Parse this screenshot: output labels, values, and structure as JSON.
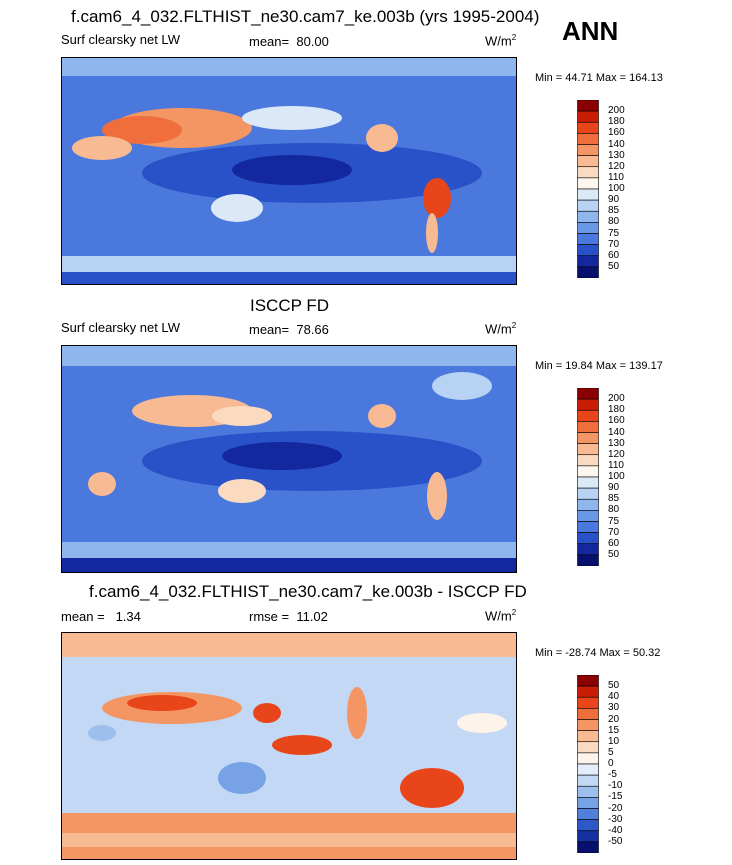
{
  "season": "ANN",
  "panels": [
    {
      "title": "f.cam6_4_032.FLTHIST_ne30.cam7_ke.003b (yrs 1995-2004)",
      "variable": "Surf clearsky net LW",
      "stat_label": "mean=",
      "stat_value": "80.00",
      "units_base": "W/m",
      "units_exp": "2",
      "minmax": "Min =  44.71 Max = 164.13",
      "colorbar": {
        "labels": [
          "200",
          "180",
          "160",
          "140",
          "130",
          "120",
          "110",
          "100",
          "90",
          "85",
          "80",
          "75",
          "70",
          "60",
          "50"
        ],
        "colors": [
          "#8b0000",
          "#c81e06",
          "#e8451a",
          "#f06e3c",
          "#f49664",
          "#f8ba92",
          "#fbdac2",
          "#fdf6ee",
          "#dbe8f8",
          "#b8d2f4",
          "#90b6ee",
          "#6a98e6",
          "#4a78dc",
          "#2a52c8",
          "#13289e",
          "#08106e"
        ]
      }
    },
    {
      "title": "ISCCP FD",
      "variable": "Surf clearsky net LW",
      "stat_label": "mean=",
      "stat_value": "78.66",
      "units_base": "W/m",
      "units_exp": "2",
      "minmax": "Min =  19.84 Max = 139.17",
      "colorbar": {
        "labels": [
          "200",
          "180",
          "160",
          "140",
          "130",
          "120",
          "110",
          "100",
          "90",
          "85",
          "80",
          "75",
          "70",
          "60",
          "50"
        ],
        "colors": [
          "#8b0000",
          "#c81e06",
          "#e8451a",
          "#f06e3c",
          "#f49664",
          "#f8ba92",
          "#fbdac2",
          "#fdf6ee",
          "#dbe8f8",
          "#b8d2f4",
          "#90b6ee",
          "#6a98e6",
          "#4a78dc",
          "#2a52c8",
          "#13289e",
          "#08106e"
        ]
      }
    },
    {
      "title": "f.cam6_4_032.FLTHIST_ne30.cam7_ke.003b - ISCCP FD",
      "stat_label": "mean =",
      "stat_value": "1.34",
      "rmse_label": "rmse =",
      "rmse_value": "11.02",
      "units_base": "W/m",
      "units_exp": "2",
      "minmax": "Min = -28.74 Max =  50.32",
      "colorbar": {
        "labels": [
          "50",
          "40",
          "30",
          "20",
          "15",
          "10",
          "5",
          "0",
          "-5",
          "-10",
          "-15",
          "-20",
          "-30",
          "-40",
          "-50"
        ],
        "colors": [
          "#8b0000",
          "#c81e06",
          "#e8451a",
          "#f06e3c",
          "#f49664",
          "#f8ba92",
          "#fbdac2",
          "#fdf3ea",
          "#e4eefa",
          "#c2d8f4",
          "#9ebeee",
          "#78a2e6",
          "#5080dc",
          "#2c58c8",
          "#14309e",
          "#08106e"
        ]
      }
    }
  ]
}
